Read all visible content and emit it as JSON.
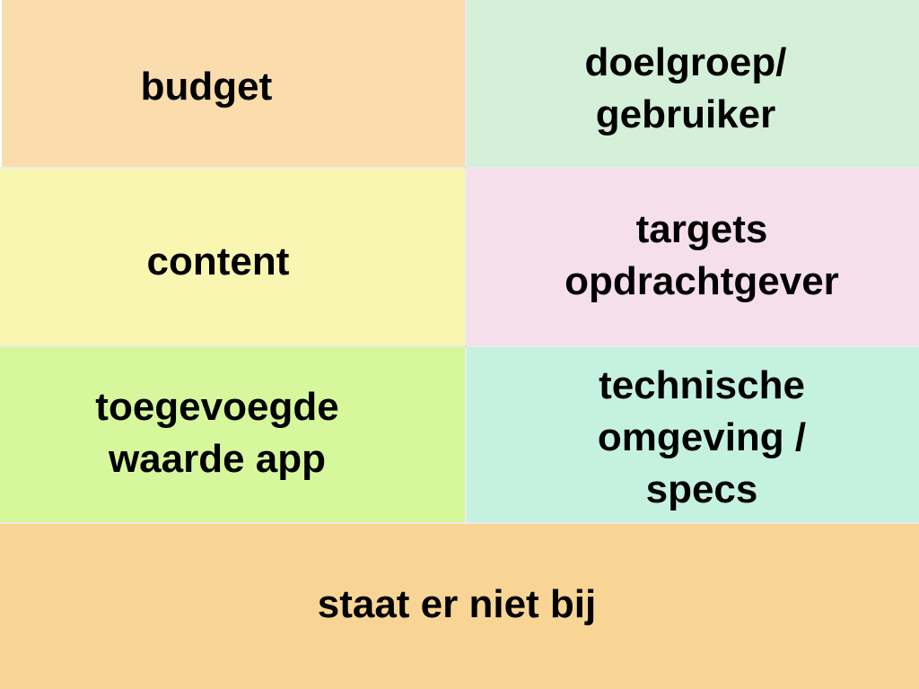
{
  "tiles": {
    "budget": {
      "label": "budget",
      "color": "#FBDCAC"
    },
    "doelgroep": {
      "label": "doelgroep/\ngebruiker",
      "color": "#D4F0D8"
    },
    "content": {
      "label": "content",
      "color": "#F9F6B1"
    },
    "targets": {
      "label": "targets\nopdrachtgever",
      "color": "#F5DFEA"
    },
    "toegevoegde": {
      "label": "toegevoegde\nwaarde app",
      "color": "#D7F79D"
    },
    "technische": {
      "label": "technische\nomgeving /\nspecs",
      "color": "#C5F2E0"
    },
    "footer": {
      "label": "staat er niet bij",
      "color": "#F9D595"
    }
  }
}
